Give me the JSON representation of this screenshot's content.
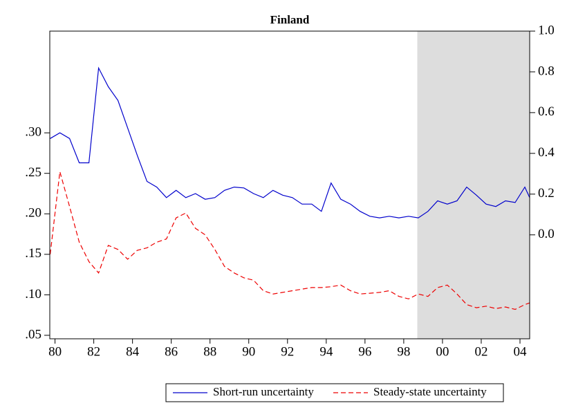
{
  "chart_data": {
    "type": "line",
    "title": "Finland",
    "x": [
      1979.75,
      1980.25,
      1980.75,
      1981.25,
      1981.75,
      1982.25,
      1982.75,
      1983.25,
      1983.75,
      1984.25,
      1984.75,
      1985.25,
      1985.75,
      1986.25,
      1986.75,
      1987.25,
      1987.75,
      1988.25,
      1988.75,
      1989.25,
      1989.75,
      1990.25,
      1990.75,
      1991.25,
      1991.75,
      1992.25,
      1992.75,
      1993.25,
      1993.75,
      1994.25,
      1994.75,
      1995.25,
      1995.75,
      1996.25,
      1996.75,
      1997.25,
      1997.75,
      1998.25,
      1998.75,
      1999.25,
      1999.75,
      2000.25,
      2000.75,
      2001.25,
      2001.75,
      2002.25,
      2002.75,
      2003.25,
      2003.75,
      2004.25,
      2004.5
    ],
    "series": [
      {
        "name": "Short-run uncertainty",
        "color": "#0000cc",
        "dash": false,
        "values": [
          0.293,
          0.3,
          0.293,
          0.263,
          0.263,
          0.38,
          0.357,
          0.34,
          0.306,
          0.272,
          0.24,
          0.233,
          0.22,
          0.229,
          0.22,
          0.225,
          0.218,
          0.22,
          0.229,
          0.233,
          0.232,
          0.225,
          0.22,
          0.229,
          0.223,
          0.22,
          0.212,
          0.212,
          0.203,
          0.238,
          0.218,
          0.212,
          0.203,
          0.197,
          0.195,
          0.197,
          0.195,
          0.197,
          0.195,
          0.203,
          0.216,
          0.212,
          0.216,
          0.233,
          0.223,
          0.212,
          0.209,
          0.216,
          0.214,
          0.233,
          0.22
        ]
      },
      {
        "name": "Steady-state uncertainty",
        "color": "#ee0000",
        "dash": true,
        "values": [
          0.15,
          0.252,
          0.209,
          0.165,
          0.141,
          0.127,
          0.161,
          0.156,
          0.144,
          0.155,
          0.158,
          0.165,
          0.169,
          0.195,
          0.201,
          0.182,
          0.174,
          0.156,
          0.135,
          0.127,
          0.121,
          0.118,
          0.105,
          0.101,
          0.103,
          0.105,
          0.107,
          0.109,
          0.109,
          0.11,
          0.112,
          0.105,
          0.101,
          0.102,
          0.103,
          0.105,
          0.098,
          0.095,
          0.101,
          0.098,
          0.109,
          0.112,
          0.101,
          0.088,
          0.084,
          0.086,
          0.083,
          0.085,
          0.082,
          0.088,
          0.09
        ]
      }
    ],
    "xlim": [
      1979.73,
      2004.5
    ],
    "xticks": [
      {
        "value": 1980,
        "label": "80"
      },
      {
        "value": 1982,
        "label": "82"
      },
      {
        "value": 1984,
        "label": "84"
      },
      {
        "value": 1986,
        "label": "86"
      },
      {
        "value": 1988,
        "label": "88"
      },
      {
        "value": 1990,
        "label": "90"
      },
      {
        "value": 1992,
        "label": "92"
      },
      {
        "value": 1994,
        "label": "94"
      },
      {
        "value": 1996,
        "label": "96"
      },
      {
        "value": 1998,
        "label": "98"
      },
      {
        "value": 2000,
        "label": "00"
      },
      {
        "value": 2002,
        "label": "02"
      },
      {
        "value": 2004,
        "label": "04"
      }
    ],
    "ylim": [
      0.0457,
      0.4256
    ],
    "yticks": [
      {
        "value": 0.05,
        "label": ".05"
      },
      {
        "value": 0.1,
        "label": ".10"
      },
      {
        "value": 0.15,
        "label": ".15"
      },
      {
        "value": 0.2,
        "label": ".20"
      },
      {
        "value": 0.25,
        "label": ".25"
      },
      {
        "value": 0.3,
        "label": ".30"
      }
    ],
    "y2lim": [
      -0.51,
      1.0
    ],
    "y2ticks": [
      {
        "value": 0,
        "label": "0.0"
      },
      0.2,
      0.4,
      0.6,
      0.8,
      {
        "value": 1,
        "label": "1.0"
      }
    ],
    "shade": [
      1998.7,
      2004.5
    ],
    "shade_color": "#dddddd"
  }
}
